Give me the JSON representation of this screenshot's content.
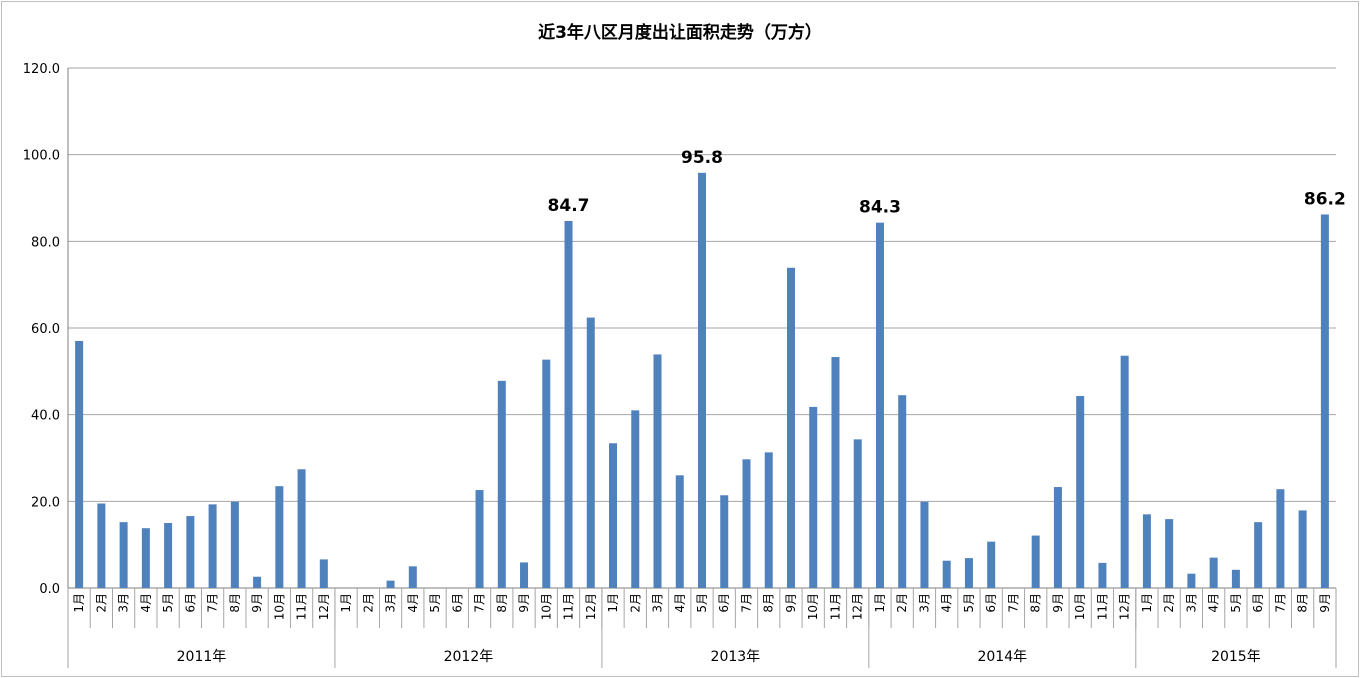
{
  "chart_data": {
    "type": "bar",
    "title": "近3年八区月度出让面积走势（万方）",
    "xlabel": "",
    "ylabel": "",
    "ylim": [
      0,
      120
    ],
    "yticks": [
      "0.0",
      "20.0",
      "40.0",
      "60.0",
      "80.0",
      "100.0",
      "120.0"
    ],
    "grid": true,
    "legend": "none",
    "bar_color": "#4f81bd",
    "groups": [
      {
        "year": "2011年",
        "months": [
          "1月",
          "2月",
          "3月",
          "4月",
          "5月",
          "6月",
          "7月",
          "8月",
          "9月",
          "10月",
          "11月",
          "12月"
        ],
        "values": [
          57.0,
          19.5,
          15.2,
          13.8,
          15.0,
          16.6,
          19.3,
          19.9,
          2.6,
          23.5,
          27.4,
          6.6
        ]
      },
      {
        "year": "2012年",
        "months": [
          "1月",
          "2月",
          "3月",
          "4月",
          "5月",
          "6月",
          "7月",
          "8月",
          "9月",
          "10月",
          "11月",
          "12月"
        ],
        "values": [
          0,
          0,
          1.7,
          5.0,
          0,
          0,
          22.6,
          47.8,
          5.9,
          52.7,
          84.7,
          62.4
        ]
      },
      {
        "year": "2013年",
        "months": [
          "1月",
          "2月",
          "3月",
          "4月",
          "5月",
          "6月",
          "7月",
          "8月",
          "9月",
          "10月",
          "11月",
          "12月"
        ],
        "values": [
          33.4,
          41.0,
          53.9,
          26.0,
          95.8,
          21.4,
          29.7,
          31.3,
          73.9,
          41.8,
          53.3,
          34.3
        ]
      },
      {
        "year": "2014年",
        "months": [
          "1月",
          "2月",
          "3月",
          "4月",
          "5月",
          "6月",
          "7月",
          "8月",
          "9月",
          "10月",
          "11月",
          "12月"
        ],
        "values": [
          84.3,
          44.5,
          19.9,
          6.3,
          6.9,
          10.7,
          0,
          12.1,
          23.3,
          44.3,
          5.8,
          53.6
        ]
      },
      {
        "year": "2015年",
        "months": [
          "1月",
          "2月",
          "3月",
          "4月",
          "5月",
          "6月",
          "7月",
          "8月",
          "9月"
        ],
        "values": [
          17.0,
          15.9,
          3.3,
          7.0,
          4.2,
          15.2,
          22.8,
          17.9,
          86.2
        ]
      }
    ],
    "data_labels": [
      {
        "year": "2012年",
        "month": "11月",
        "text": "84.7"
      },
      {
        "year": "2013年",
        "month": "5月",
        "text": "95.8"
      },
      {
        "year": "2014年",
        "month": "1月",
        "text": "84.3"
      },
      {
        "year": "2015年",
        "month": "9月",
        "text": "86.2"
      }
    ]
  }
}
